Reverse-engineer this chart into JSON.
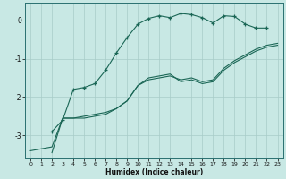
{
  "xlabel": "Humidex (Indice chaleur)",
  "bg_color": "#c8e8e4",
  "grid_color": "#a8ccc8",
  "line_color": "#1a6655",
  "xlim": [
    -0.5,
    23.5
  ],
  "ylim": [
    -3.6,
    0.45
  ],
  "x": [
    0,
    1,
    2,
    3,
    4,
    5,
    6,
    7,
    8,
    9,
    10,
    11,
    12,
    13,
    14,
    15,
    16,
    17,
    18,
    19,
    20,
    21,
    22,
    23
  ],
  "line1_x": [
    2,
    3,
    4,
    5,
    6,
    7,
    8,
    9,
    10,
    11,
    12,
    13,
    14,
    15,
    16,
    17,
    18,
    19,
    20,
    21,
    22
  ],
  "line1_y": [
    -2.9,
    -2.6,
    -1.8,
    -1.75,
    -1.65,
    -1.3,
    -0.85,
    -0.45,
    -0.1,
    0.05,
    0.12,
    0.07,
    0.18,
    0.15,
    0.07,
    -0.07,
    0.12,
    0.1,
    -0.1,
    -0.2,
    -0.2
  ],
  "line2_x": [
    0,
    2,
    3,
    4,
    5,
    6,
    7,
    8,
    9,
    10,
    11,
    12,
    13,
    14,
    15,
    16,
    17,
    18,
    19,
    20,
    21,
    22,
    23
  ],
  "line2_y": [
    -3.4,
    -3.3,
    -2.55,
    -2.55,
    -2.55,
    -2.5,
    -2.45,
    -2.3,
    -2.1,
    -1.7,
    -1.5,
    -1.45,
    -1.4,
    -1.6,
    -1.55,
    -1.65,
    -1.6,
    -1.3,
    -1.1,
    -0.95,
    -0.8,
    -0.7,
    -0.65
  ],
  "line3_x": [
    2,
    3,
    4,
    5,
    6,
    7,
    8,
    9,
    10,
    11,
    12,
    13,
    14,
    15,
    16,
    17,
    18,
    19,
    20,
    21,
    22,
    23
  ],
  "line3_y": [
    -3.45,
    -2.55,
    -2.55,
    -2.5,
    -2.45,
    -2.4,
    -2.3,
    -2.1,
    -1.7,
    -1.55,
    -1.5,
    -1.45,
    -1.55,
    -1.5,
    -1.6,
    -1.55,
    -1.25,
    -1.05,
    -0.9,
    -0.75,
    -0.65,
    -0.6
  ],
  "yticks": [
    0,
    -1,
    -2,
    -3
  ],
  "xticks": [
    0,
    1,
    2,
    3,
    4,
    5,
    6,
    7,
    8,
    9,
    10,
    11,
    12,
    13,
    14,
    15,
    16,
    17,
    18,
    19,
    20,
    21,
    22,
    23
  ]
}
